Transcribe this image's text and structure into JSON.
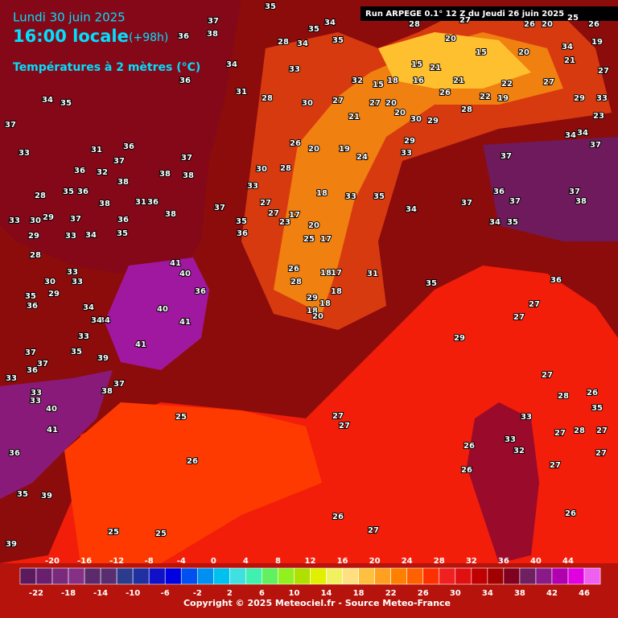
{
  "header": {
    "date": "Lundi 30 juin 2025",
    "time": "16:00 locale",
    "lead": "(+98h)",
    "field": "Températures à 2 mètres (°C)",
    "run": "Run ARPEGE 0.1° 12 Z du Jeudi 26 juin 2025"
  },
  "footer": {
    "copyright": "Copyright © 2025 Meteociel.fr - Source Meteo-France"
  },
  "colorbar": {
    "ticks_top": [
      -20,
      -16,
      -12,
      -8,
      -4,
      0,
      4,
      8,
      12,
      16,
      20,
      24,
      28,
      32,
      36,
      40,
      44
    ],
    "ticks_bottom": [
      -22,
      -18,
      -14,
      -10,
      -6,
      -2,
      2,
      6,
      10,
      14,
      18,
      22,
      26,
      30,
      34,
      38,
      42,
      46
    ],
    "colors": [
      "#5c1a5c",
      "#6a1f6e",
      "#7a2a7a",
      "#852f85",
      "#5a2a6a",
      "#5a2d70",
      "#2c3c8c",
      "#2030a0",
      "#1010c8",
      "#0000e0",
      "#0050f0",
      "#0090f0",
      "#00c0f0",
      "#40e0e0",
      "#40f0b0",
      "#60f060",
      "#90f020",
      "#b0e000",
      "#e0f000",
      "#f0f060",
      "#ffe080",
      "#ffc040",
      "#ffa020",
      "#ff8000",
      "#ff6000",
      "#ff3000",
      "#f02020",
      "#e01010",
      "#c00000",
      "#a00000",
      "#800020",
      "#702060",
      "#8a1a8a",
      "#b000b0",
      "#e000e0",
      "#f060f0"
    ]
  },
  "map_labels": [
    37,
    38,
    36,
    36,
    34,
    35,
    35,
    34,
    35,
    28,
    34,
    33,
    31,
    28,
    30,
    34,
    35,
    37,
    33,
    31,
    36,
    37,
    37,
    36,
    32,
    38,
    38,
    38,
    28,
    35,
    36,
    38,
    31,
    36,
    33,
    30,
    29,
    37,
    36,
    35,
    38,
    37,
    35,
    36,
    29,
    33,
    34,
    28,
    33,
    33,
    30,
    35,
    36,
    29,
    34,
    34,
    41,
    40,
    36,
    40,
    41,
    41,
    34,
    33,
    35,
    39,
    37,
    37,
    36,
    33,
    33,
    33,
    38,
    37,
    40,
    41,
    36,
    35,
    39,
    39,
    33,
    35,
    34,
    31,
    35,
    37,
    36,
    37,
    37,
    38,
    37,
    34,
    37,
    34,
    35,
    36,
    27,
    27,
    29,
    27,
    28,
    26,
    35,
    33,
    27,
    28,
    27,
    27,
    26,
    26,
    33,
    32,
    27,
    26,
    27,
    27,
    26,
    25,
    26,
    27,
    25,
    25,
    29,
    18,
    18,
    20,
    18,
    17,
    18,
    26,
    28,
    17,
    25,
    20,
    17,
    27,
    23,
    27,
    33,
    30,
    28,
    18,
    24,
    19,
    20,
    26,
    21,
    27,
    27,
    20,
    20,
    15,
    32,
    18,
    16,
    26,
    21,
    28,
    22,
    19,
    22,
    27,
    21,
    29,
    33,
    23,
    34,
    15,
    15,
    21,
    20,
    28,
    27,
    20,
    26,
    20,
    34,
    25,
    26,
    19,
    27,
    29,
    33,
    30,
    29
  ]
}
